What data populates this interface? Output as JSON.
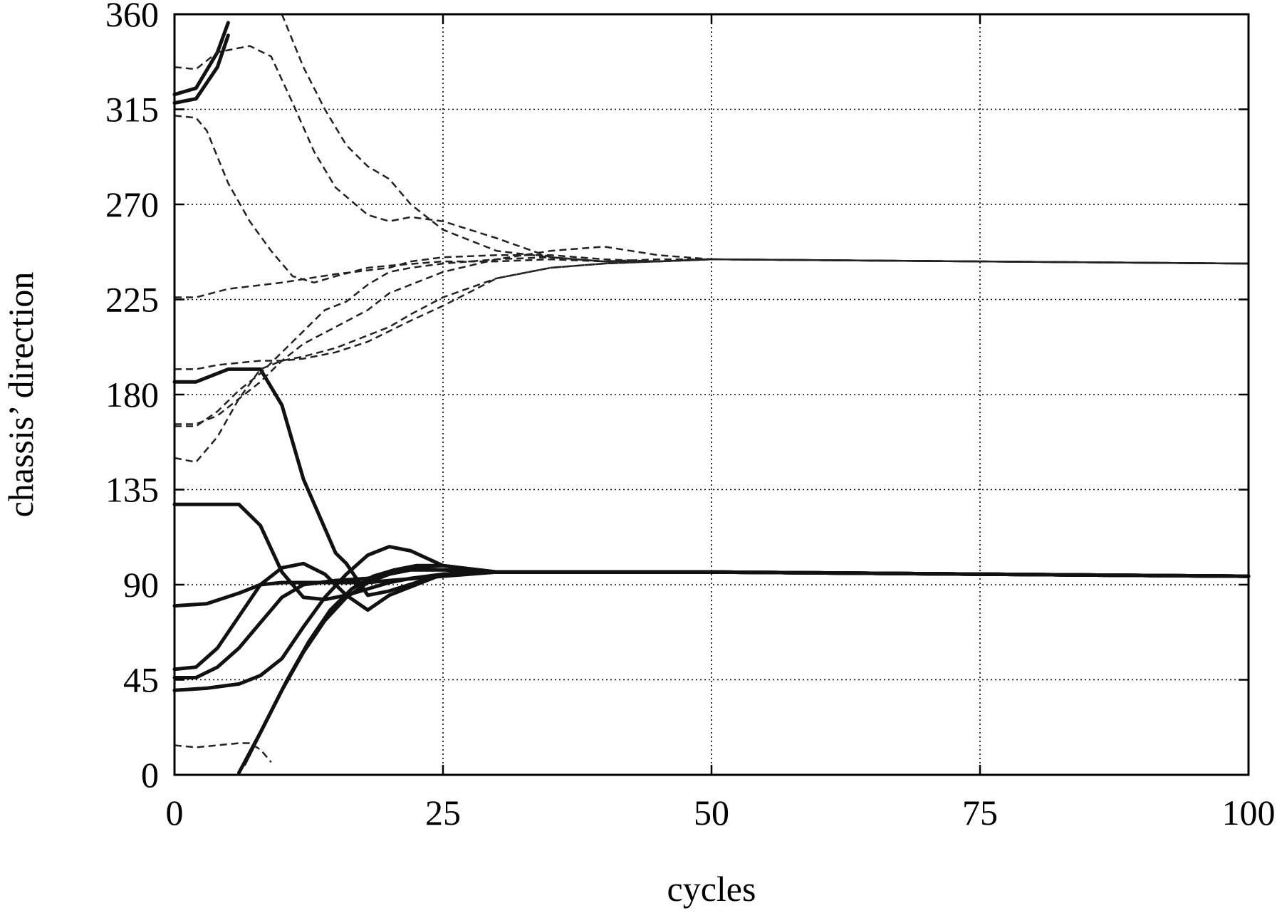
{
  "chart_data": {
    "type": "line",
    "title": "",
    "xlabel": "cycles",
    "ylabel": "chassis’ direction",
    "xlim": [
      0,
      100
    ],
    "ylim": [
      0,
      360
    ],
    "xticks": [
      "0",
      "25",
      "50",
      "75",
      "100"
    ],
    "yticks": [
      "0",
      "45",
      "90",
      "135",
      "180",
      "225",
      "270",
      "315",
      "360"
    ],
    "grid": true,
    "series": [
      {
        "style": "solid",
        "x": [
          0,
          2,
          4,
          5
        ],
        "y": [
          318,
          320,
          335,
          350
        ]
      },
      {
        "style": "solid",
        "x": [
          0,
          2,
          4,
          5
        ],
        "y": [
          322,
          325,
          342,
          356
        ]
      },
      {
        "style": "solid",
        "x": [
          0,
          2,
          5,
          8,
          10,
          12,
          15,
          16,
          18,
          20,
          25,
          30,
          50,
          75,
          100
        ],
        "y": [
          186,
          186,
          192,
          192,
          175,
          140,
          105,
          100,
          85,
          87,
          95,
          96,
          96,
          95,
          94
        ]
      },
      {
        "style": "solid",
        "x": [
          0,
          6,
          8,
          10,
          12,
          14,
          16,
          18,
          20,
          22,
          25,
          30,
          50,
          75,
          100
        ],
        "y": [
          128,
          128,
          118,
          96,
          84,
          83,
          85,
          88,
          91,
          93,
          95,
          96,
          96,
          95,
          94
        ]
      },
      {
        "style": "solid",
        "x": [
          0,
          3,
          6,
          8,
          10,
          12,
          15,
          18,
          20,
          25,
          30,
          50,
          75,
          100
        ],
        "y": [
          80,
          81,
          86,
          90,
          91,
          91,
          91,
          91,
          92,
          94,
          96,
          96,
          95,
          94
        ]
      },
      {
        "style": "solid",
        "x": [
          0,
          2,
          4,
          6,
          8,
          10,
          12,
          14,
          16,
          18,
          20,
          25,
          30,
          50,
          75,
          100
        ],
        "y": [
          50,
          51,
          60,
          75,
          90,
          98,
          100,
          95,
          85,
          78,
          85,
          95,
          96,
          96,
          95,
          94
        ]
      },
      {
        "style": "solid",
        "x": [
          0,
          2,
          4,
          6,
          8,
          10,
          12,
          15,
          18,
          20,
          22,
          25,
          30,
          50,
          75,
          100
        ],
        "y": [
          46,
          46,
          51,
          60,
          72,
          84,
          90,
          92,
          93,
          95,
          97,
          97,
          96,
          96,
          95,
          94
        ]
      },
      {
        "style": "solid",
        "x": [
          0,
          3,
          6,
          8,
          10,
          12,
          14,
          16,
          18,
          20,
          22,
          25,
          30,
          50,
          75,
          100
        ],
        "y": [
          40,
          41,
          43,
          47,
          55,
          70,
          84,
          95,
          104,
          108,
          106,
          99,
          96,
          96,
          95,
          94
        ]
      },
      {
        "style": "solid",
        "x": [
          6,
          8,
          10,
          12,
          14,
          16,
          18,
          20,
          22,
          25,
          30,
          50,
          75,
          100
        ],
        "y": [
          1,
          20,
          40,
          58,
          73,
          84,
          91,
          95,
          98,
          99,
          96,
          96,
          95,
          94
        ]
      },
      {
        "style": "solid",
        "x": [
          6.5,
          8.5,
          10.5,
          12.5,
          14.5,
          16.5,
          18.5,
          20.5,
          22.5,
          25,
          30,
          50,
          75,
          100
        ],
        "y": [
          5,
          25,
          45,
          63,
          78,
          88,
          94,
          97,
          99,
          99,
          96,
          96,
          95,
          94
        ]
      },
      {
        "style": "dashed",
        "x": [
          0,
          2,
          4,
          7,
          9,
          11,
          13,
          15,
          18,
          20,
          22,
          25,
          30,
          35,
          40,
          45,
          50,
          75,
          100
        ],
        "y": [
          335,
          334,
          342,
          345,
          340,
          318,
          295,
          278,
          265,
          262,
          264,
          262,
          254,
          245,
          243,
          243,
          244,
          243,
          242
        ]
      },
      {
        "style": "dashed",
        "x": [
          10,
          12,
          14,
          16,
          18,
          20,
          22,
          25,
          30,
          35,
          40,
          45,
          50,
          75,
          100
        ],
        "y": [
          360,
          335,
          315,
          298,
          288,
          282,
          270,
          258,
          248,
          245,
          243,
          243,
          244,
          243,
          242
        ]
      },
      {
        "style": "dashed",
        "x": [
          0,
          2,
          3,
          5,
          7,
          9,
          11,
          13,
          15,
          18,
          20,
          25,
          30,
          35,
          40,
          45,
          50,
          75,
          100
        ],
        "y": [
          312,
          311,
          305,
          280,
          262,
          248,
          236,
          233,
          236,
          240,
          241,
          243,
          243,
          244,
          243,
          243,
          244,
          243,
          242
        ]
      },
      {
        "style": "dashed",
        "x": [
          0,
          2,
          5,
          10,
          15,
          20,
          22,
          25,
          30,
          35,
          40,
          45,
          50,
          75,
          100
        ],
        "y": [
          226,
          226,
          230,
          233,
          237,
          240,
          243,
          245,
          246,
          246,
          244,
          243,
          244,
          243,
          242
        ]
      },
      {
        "style": "dashed",
        "x": [
          0,
          2,
          4,
          6,
          8,
          10,
          12,
          15,
          18,
          20,
          22,
          25,
          30,
          35,
          40,
          45,
          50,
          75,
          100
        ],
        "y": [
          192,
          192,
          194,
          195,
          196,
          196,
          197,
          200,
          205,
          210,
          215,
          222,
          235,
          240,
          242,
          243,
          244,
          243,
          242
        ]
      },
      {
        "style": "dashed",
        "x": [
          0,
          2,
          4,
          6,
          8,
          10,
          12,
          15,
          18,
          20,
          22,
          25,
          30,
          35,
          40,
          45,
          50,
          75,
          100
        ],
        "y": [
          166,
          166,
          170,
          178,
          186,
          196,
          204,
          212,
          220,
          228,
          232,
          238,
          244,
          248,
          250,
          246,
          244,
          243,
          242
        ]
      },
      {
        "style": "dashed",
        "x": [
          0,
          2,
          4,
          6,
          8,
          10,
          12,
          14,
          16,
          18,
          20,
          22,
          25,
          30,
          35,
          40,
          45,
          50,
          75,
          100
        ],
        "y": [
          165,
          165,
          172,
          182,
          190,
          200,
          210,
          220,
          224,
          232,
          238,
          240,
          242,
          244,
          245,
          243,
          244,
          244,
          243,
          242
        ]
      },
      {
        "style": "dashed",
        "x": [
          0,
          2,
          4,
          6,
          8,
          10,
          12,
          15,
          18,
          20,
          22,
          25,
          30,
          35,
          40,
          45,
          50,
          75,
          100
        ],
        "y": [
          150,
          148,
          160,
          178,
          192,
          196,
          198,
          202,
          208,
          212,
          218,
          226,
          235,
          240,
          242,
          243,
          244,
          243,
          242
        ]
      },
      {
        "style": "dashed",
        "x": [
          0,
          2,
          4,
          6,
          7,
          8,
          9
        ],
        "y": [
          14,
          13,
          14,
          15,
          15,
          12,
          6
        ]
      }
    ]
  }
}
